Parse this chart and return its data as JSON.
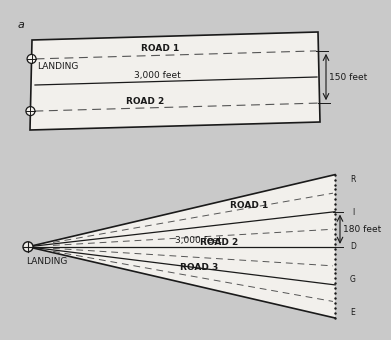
{
  "bg_color": "#c9c9c9",
  "panel_color": "#f2f0ec",
  "panel_a": {
    "dim_label_3000": "3,000 feet",
    "dim_label_150": "150 feet"
  },
  "panel_b": {
    "dim_label_3000": "3,000 feet",
    "dim_label_180": "180 feet"
  },
  "text_color": "#1a1a1a",
  "line_color": "#1a1a1a",
  "dash_color": "#555555",
  "font_size": 6.5,
  "label_font_size": 8
}
